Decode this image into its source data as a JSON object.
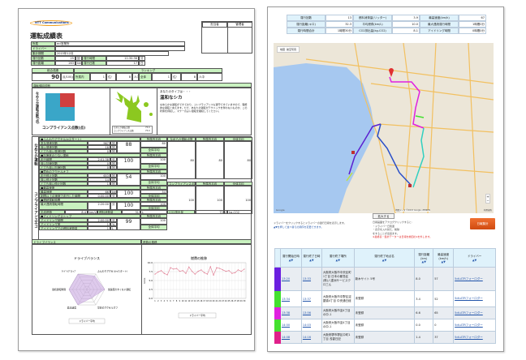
{
  "left": {
    "logo": "NTT Communications",
    "title": "運転成績表",
    "stamp_headers": [
      "担当者",
      "管理者"
    ],
    "info": [
      {
        "label": "所属",
        "value": "ecl営業所"
      },
      {
        "label": "ドライバー",
        "value": ""
      },
      {
        "label": "集計期間",
        "value": "2015年12月"
      },
      {
        "label": "運行回数",
        "value": "25",
        "unit": "回",
        "label2": "運行時間",
        "value2": "11:30:36",
        "unit2": "分"
      },
      {
        "label": "運行距離",
        "value": "263",
        "unit": "km",
        "label2": "運行日数",
        "value2": "17",
        "unit2": "日"
      }
    ],
    "score": {
      "label": "総合成績",
      "value": "90",
      "unit": "点/100点"
    },
    "ranking": {
      "label": "ランキング",
      "in_office": "所属内",
      "in_office_rank": "1",
      "in_office_of": "位/",
      "in_office_total": "8",
      "people": "人中",
      "all": "全体",
      "all_rank": "1",
      "all_of": "位/",
      "all_total": "8"
    },
    "diagnosis": {
      "header": "運転傾向診断",
      "axis_y": "なめらか運転点数(点)",
      "axis_x": "コンプライアンス点数(点)",
      "type_intro": "あなたのタイプは・・・",
      "type_name": "温和なシカ",
      "description": "なめらかな運転ができており、コンプライアンスも遵守できていますので、理想的な運転と言えます。ただ、あなたの運転がテクニックを伴わないものか、この状態を持続し、マナーのよい運転を継続してください。",
      "legend": [
        "なめらか運転点数",
        "コンプライアンス点数"
      ],
      "legend_values": [
        "75.0",
        "75.0"
      ],
      "quadrant_colors": [
        "#3aa6c8",
        "#d04040",
        "#3aa6c8",
        "#3aa6c8"
      ]
    },
    "sections": [
      {
        "group": "なめらか運転",
        "title": "■ふんわりアクセル(eスタート)",
        "rows": [
          [
            "急な発進回数",
            "967",
            "回"
          ],
          [
            "強い発進回数",
            "18",
            "回"
          ],
          [
            "とても強い発進回数",
            "0",
            "回"
          ]
        ],
        "score": "88"
      },
      {
        "title": "■加速度の少ない運転",
        "rows": [
          [
            "走行時間",
            "2:01:38",
            "分"
          ],
          [
            "強い加速回数",
            "0",
            "回"
          ],
          [
            "とても強い加速回数",
            "0",
            "回"
          ]
        ],
        "score": "100"
      },
      {
        "title": "■早めのアクセルオフ",
        "rows": [
          [
            "走行停止回数",
            "653",
            "回"
          ],
          [
            "強い停止回数",
            "14",
            "回"
          ],
          [
            "とても強い停止回数",
            "1",
            "回"
          ]
        ],
        "score": "54"
      },
      {
        "group": "コンプライアンス",
        "title": "■最高速度",
        "rows": [
          [
            "最高速度",
            "66",
            "km/h"
          ],
          [
            "制限以上の速度で走行した時間",
            "0:00:00",
            "分"
          ]
        ],
        "score": "100"
      },
      {
        "title": "■連続運転時間",
        "rows": [
          [
            "最大連続運転時間",
            "2:20:00",
            "分"
          ]
        ],
        "score": "100"
      },
      {
        "group": "エコ",
        "title": "■アイドリングストップ",
        "rows": [
          [
            "アイドリング時間",
            "2:00:00",
            "分"
          ],
          [
            "アイドリング率",
            "1",
            "%"
          ],
          [
            "アイドリングでの燃料消費量",
            "1",
            "L"
          ]
        ],
        "score": "99"
      }
    ],
    "avg_labels": [
      "所属内平均",
      "全体平均"
    ],
    "avg_values": [
      "80",
      "80",
      "100",
      "100",
      "100",
      "100",
      "54",
      "54",
      "100",
      "100",
      "100",
      "100",
      "99",
      "99"
    ],
    "summary_headers": [
      "なめらか運転点数",
      "所属内平均",
      "全体平均"
    ],
    "summary_values": [
      "80",
      "80",
      "80"
    ],
    "comp_headers": [
      "コンプライアンス点数",
      "所属内平均",
      "全体平均"
    ],
    "comp_values": [
      "100",
      "100",
      "100"
    ],
    "fuel": {
      "label": "平均燃費",
      "value": "8.4",
      "unit": "km/L",
      "label2": "燃料消費量",
      "value2": "31",
      "unit2": "L",
      "label3": "CO2排出量",
      "value3": "73.6",
      "unit3": "kg-CO2"
    },
    "balance_header": "ドライブバランス",
    "trend_header": "燃費の推移"
  },
  "chart_data": [
    {
      "type": "radar",
      "title": "ドライブバランス",
      "axes": [
        "ｱｲﾄﾞﾘﾝｸﾞｽﾄｯﾌﾟ",
        "ふんわりアクセル(eスタート)",
        "加速度のすくない運転",
        "早めのアクセルオフ",
        "最高速度",
        "連続運転時間"
      ],
      "series": [
        {
          "name": "平均",
          "values": [
            99,
            88,
            100,
            54,
            100,
            100
          ]
        }
      ],
      "range": [
        0,
        100
      ],
      "legend": "bottom",
      "legend_text": "ドライバー平均"
    },
    {
      "type": "line",
      "title": "燃費の推移",
      "ylabel": "km/L",
      "ylim": [
        0,
        10
      ],
      "yticks": [
        "10.0",
        "7.5",
        "5.0",
        "2.5",
        "0.0"
      ],
      "x": [
        "1",
        "2",
        "3",
        "4",
        "5",
        "6",
        "7",
        "8",
        "9",
        "10",
        "11",
        "12",
        "13",
        "14",
        "15",
        "16",
        "17",
        "18",
        "19",
        "20",
        "21",
        "22",
        "23",
        "24",
        "25",
        "26",
        "27",
        "28",
        "29",
        "30"
      ],
      "series": [
        {
          "name": "平均",
          "values": [
            6.8,
            7.4,
            7.8,
            7.0,
            6.6,
            8.6,
            8.2,
            8.4,
            7.6,
            7.8,
            7.0,
            8.8,
            7.6,
            6.8,
            7.6,
            8.0,
            7.2,
            6.8,
            8.9,
            6.5,
            8.6,
            8.4,
            8.0,
            7.6,
            7.8,
            7.0,
            7.2,
            8.0,
            7.6,
            8.2
          ]
        }
      ],
      "grid": true,
      "legend": "bottom",
      "legend_text": "ドライバー平均",
      "color": "#e07a90"
    }
  ],
  "right": {
    "stats": [
      [
        "運行回数",
        "13",
        "燃料消費量(リッター)",
        "3.9",
        "最高速度(km/h)",
        "67"
      ],
      [
        "運行距離(キロ)",
        "32.3",
        "平均燃費(km/L)",
        "10.0",
        "最大連続運行時間",
        "1時間0分"
      ],
      [
        "運行時間合計",
        "1時間30分",
        "CO2排出量(kg-CO2)",
        "8.1",
        "アイドリング時間",
        "0時間0分"
      ]
    ],
    "map": {
      "tabs": [
        "地図",
        "航空写真"
      ],
      "copyright": "地図データ ©2015 Google, ZENRIN",
      "terms": "利用規約",
      "logo": "Google",
      "zoom_in": "+",
      "zoom_out": "−"
    },
    "expand_button": "拡大する",
    "note_left": [
      "ドライバーをクリックするとドライバーの運行日報を表示します。",
      "▲▼を押して並べ替えの順序を変更できます。"
    ],
    "note_right": [
      "日報画面をアナログクリックすると:",
      "・ドライバー日別運",
      "・表示を入れ替え、削除",
      "をすることが出来ます。"
    ],
    "note_warn": "※最終表・集計データーは日報を前回の1を外します。",
    "report_button": "日報集計",
    "table_headers": [
      "運行開始日時",
      "運行終了日時",
      "運行終了場所",
      "運行終了地点名",
      "運行距離(km)",
      "最高速度(km/h)",
      "ドライバー"
    ],
    "sort": "▲▼",
    "rows": [
      {
        "color": "#6a1fe0",
        "start": "13:20",
        "end": "13:33",
        "place": "大阪府大阪市中央区町1丁目 日本の都島区(株)八重洲サービスクロ三ん",
        "point": "新木サイト 5号",
        "dist": "8.0",
        "speed": "57",
        "driver": "5dt.ATRフォーロダー"
      },
      {
        "color": "#44e030",
        "start": "13:34",
        "end": "13:37",
        "place": "大阪府大阪市中野区淀屋橋4丁目 中央通日経",
        "point": "未登録",
        "dist": "3.4",
        "speed": "52",
        "driver": "5dt.ATRフォーロダー"
      },
      {
        "color": "#e020e0",
        "start": "13:38",
        "end": "13:56",
        "place": "大阪府大阪市淀4丁目の中-1",
        "point": "未登録",
        "dist": "6.6",
        "speed": "65",
        "driver": "5dt.ATRフォーロダー"
      },
      {
        "color": "#44e030",
        "start": "14:00",
        "end": "14:03",
        "place": "大阪府大阪市淀4丁目の中-1",
        "point": "未登録",
        "dist": "0.0",
        "speed": "0",
        "driver": "5dt.ATRフォーロダー"
      },
      {
        "color": "#e0208a",
        "start": "14:08",
        "end": "14:16",
        "place": "大阪府堺市堺区中町1丁目 浅香日記",
        "point": "未登録",
        "dist": "1.4",
        "speed": "37",
        "driver": "5dt.ATRフォーロダー"
      }
    ],
    "route_colors": [
      "#5a1fd0",
      "#2a4fc8",
      "#e020e0",
      "#44e030",
      "#30d0c0",
      "#c0e040"
    ]
  }
}
